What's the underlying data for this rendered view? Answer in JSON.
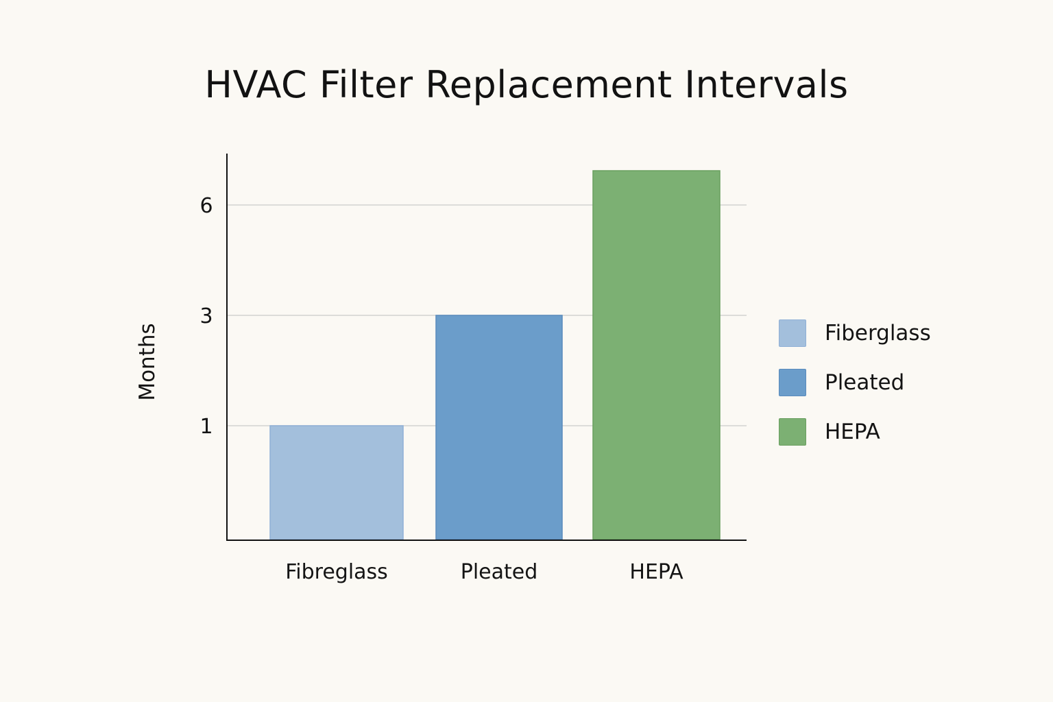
{
  "chart_data": {
    "type": "bar",
    "title": "HVAC Filter Replacement Intervals",
    "xlabel": "",
    "ylabel": "Months",
    "categories": [
      "Fibreglass",
      "Pleated",
      "HEPA"
    ],
    "values": [
      1,
      3,
      7
    ],
    "y_ticks": [
      1,
      3,
      6
    ],
    "y_tick_labels": [
      "1",
      "3",
      "6"
    ],
    "grid": true,
    "legend_position": "right",
    "legend": [
      {
        "label": "Fiberglass",
        "color": "#a3bfdc",
        "border": "#8fb0d6"
      },
      {
        "label": "Pleated",
        "color": "#6b9dca",
        "border": "#5a8bbd"
      },
      {
        "label": "HEPA",
        "color": "#7cb073",
        "border": "#6a9f60"
      }
    ],
    "colors": [
      "#a3bfdc",
      "#6b9dca",
      "#7cb073"
    ],
    "border_colors": [
      "#8fb0d6",
      "#5a8bbd",
      "#6a9f60"
    ]
  }
}
